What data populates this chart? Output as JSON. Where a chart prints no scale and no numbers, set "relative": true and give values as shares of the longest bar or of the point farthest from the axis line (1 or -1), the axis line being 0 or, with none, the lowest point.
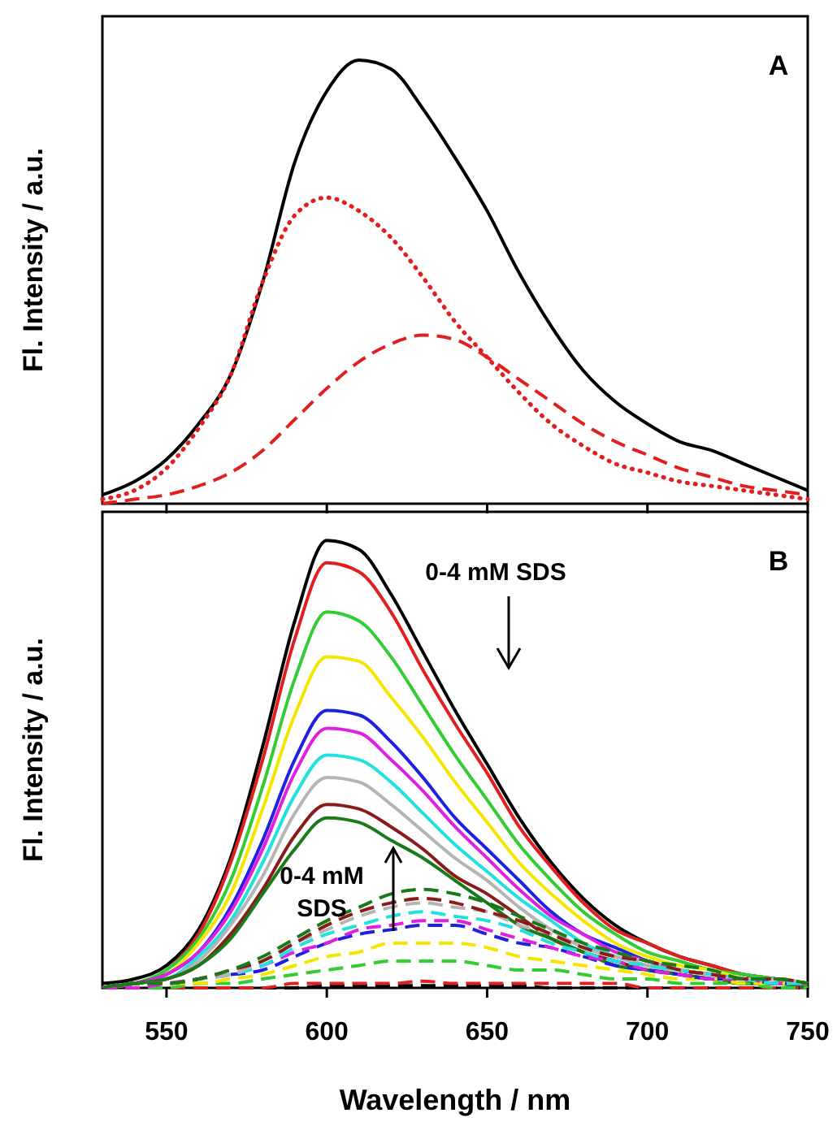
{
  "chart_data": [
    {
      "type": "line",
      "ylabel": "Fl. Intensity / a.u.",
      "relative": true,
      "xlim": [
        530,
        750
      ],
      "xticks": [
        550,
        600,
        650,
        700,
        750
      ],
      "tick_labels": false,
      "annotations": [
        "A"
      ],
      "x": [
        530,
        540,
        550,
        560,
        570,
        580,
        590,
        600,
        610,
        620,
        630,
        640,
        650,
        660,
        670,
        680,
        690,
        700,
        710,
        720,
        730,
        740,
        750
      ],
      "series": [
        {
          "color": "#000000",
          "line_style": "solid",
          "values": [
            0.02,
            0.05,
            0.1,
            0.18,
            0.29,
            0.5,
            0.77,
            0.93,
            1,
            0.98,
            0.89,
            0.78,
            0.66,
            0.52,
            0.4,
            0.3,
            0.23,
            0.18,
            0.14,
            0.12,
            0.09,
            0.06,
            0.03
          ]
        },
        {
          "color": "#e02020",
          "line_style": "dotted",
          "values": [
            0.01,
            0.03,
            0.08,
            0.17,
            0.29,
            0.5,
            0.65,
            0.69,
            0.66,
            0.6,
            0.51,
            0.41,
            0.33,
            0.25,
            0.18,
            0.13,
            0.09,
            0.07,
            0.05,
            0.04,
            0.03,
            0.02,
            0.01
          ]
        },
        {
          "color": "#e02020",
          "line_style": "dashed",
          "values": [
            0,
            0.01,
            0.02,
            0.04,
            0.07,
            0.12,
            0.19,
            0.26,
            0.32,
            0.36,
            0.38,
            0.37,
            0.33,
            0.28,
            0.23,
            0.18,
            0.14,
            0.11,
            0.08,
            0.06,
            0.04,
            0.03,
            0.02
          ]
        }
      ]
    },
    {
      "type": "line",
      "ylabel": "Fl. Intensity / a.u.",
      "xlabel": "Wavelength / nm",
      "relative": true,
      "xlim": [
        530,
        750
      ],
      "xticks": [
        550,
        600,
        650,
        700,
        750
      ],
      "tick_labels": "x",
      "annotations": [
        "B",
        "0-4 mM SDS",
        "0-4 mM SDS"
      ],
      "x": [
        530,
        540,
        550,
        560,
        570,
        580,
        590,
        600,
        610,
        620,
        630,
        640,
        650,
        660,
        670,
        680,
        690,
        700,
        710,
        720,
        730,
        740,
        750
      ],
      "series": [
        {
          "color": "#000000",
          "line_style": "solid",
          "values": [
            0.01,
            0.02,
            0.05,
            0.13,
            0.29,
            0.54,
            0.82,
            1,
            0.98,
            0.88,
            0.75,
            0.62,
            0.5,
            0.38,
            0.28,
            0.2,
            0.14,
            0.1,
            0.07,
            0.05,
            0.03,
            0.02,
            0.01
          ]
        },
        {
          "color": "#e02020",
          "line_style": "solid",
          "values": [
            0,
            0.01,
            0.04,
            0.12,
            0.28,
            0.51,
            0.78,
            0.95,
            0.93,
            0.84,
            0.71,
            0.59,
            0.48,
            0.36,
            0.27,
            0.19,
            0.13,
            0.1,
            0.07,
            0.05,
            0.03,
            0.02,
            0.01
          ]
        },
        {
          "color": "#33cc33",
          "line_style": "solid",
          "values": [
            0,
            0.01,
            0.04,
            0.11,
            0.24,
            0.45,
            0.69,
            0.84,
            0.82,
            0.74,
            0.63,
            0.52,
            0.42,
            0.32,
            0.24,
            0.17,
            0.12,
            0.08,
            0.06,
            0.04,
            0.03,
            0.02,
            0.01
          ]
        },
        {
          "color": "#f5e600",
          "line_style": "solid",
          "values": [
            0,
            0.01,
            0.03,
            0.1,
            0.21,
            0.4,
            0.61,
            0.74,
            0.73,
            0.65,
            0.56,
            0.46,
            0.37,
            0.28,
            0.21,
            0.15,
            0.1,
            0.07,
            0.05,
            0.04,
            0.02,
            0.01,
            0.01
          ]
        },
        {
          "color": "#2020e0",
          "line_style": "solid",
          "values": [
            0,
            0.01,
            0.03,
            0.08,
            0.18,
            0.33,
            0.51,
            0.62,
            0.61,
            0.55,
            0.47,
            0.38,
            0.31,
            0.24,
            0.17,
            0.12,
            0.09,
            0.06,
            0.04,
            0.03,
            0.02,
            0.01,
            0.01
          ]
        },
        {
          "color": "#e020e0",
          "line_style": "solid",
          "values": [
            0,
            0.01,
            0.03,
            0.08,
            0.17,
            0.31,
            0.48,
            0.58,
            0.57,
            0.51,
            0.44,
            0.36,
            0.29,
            0.22,
            0.16,
            0.12,
            0.08,
            0.06,
            0.04,
            0.03,
            0.02,
            0.01,
            0.01
          ]
        },
        {
          "color": "#20e0e0",
          "line_style": "solid",
          "values": [
            0,
            0.01,
            0.02,
            0.07,
            0.15,
            0.28,
            0.43,
            0.52,
            0.51,
            0.46,
            0.39,
            0.32,
            0.26,
            0.2,
            0.15,
            0.1,
            0.07,
            0.05,
            0.04,
            0.03,
            0.02,
            0.01,
            0.01
          ]
        },
        {
          "color": "#b4b4b4",
          "line_style": "solid",
          "values": [
            0,
            0.01,
            0.02,
            0.06,
            0.14,
            0.25,
            0.39,
            0.47,
            0.46,
            0.41,
            0.35,
            0.29,
            0.24,
            0.18,
            0.13,
            0.09,
            0.07,
            0.05,
            0.03,
            0.02,
            0.01,
            0.01,
            0
          ]
        },
        {
          "color": "#8b1a1a",
          "line_style": "solid",
          "values": [
            0,
            0.01,
            0.02,
            0.05,
            0.12,
            0.22,
            0.34,
            0.41,
            0.4,
            0.36,
            0.31,
            0.25,
            0.21,
            0.16,
            0.11,
            0.08,
            0.06,
            0.04,
            0.03,
            0.02,
            0.01,
            0.01,
            0
          ]
        },
        {
          "color": "#1a7a1a",
          "line_style": "solid",
          "values": [
            0,
            0.01,
            0.02,
            0.05,
            0.11,
            0.21,
            0.31,
            0.38,
            0.37,
            0.33,
            0.29,
            0.24,
            0.19,
            0.14,
            0.11,
            0.08,
            0.05,
            0.04,
            0.03,
            0.02,
            0.01,
            0.01,
            0
          ]
        },
        {
          "color": "#000000",
          "line_style": "dashed",
          "values": [
            0,
            0,
            0,
            0,
            0,
            0,
            0,
            0.005,
            0.005,
            0.005,
            0.005,
            0.005,
            0.005,
            0.005,
            0,
            0,
            0,
            0,
            0,
            0,
            0,
            0,
            0
          ]
        },
        {
          "color": "#e02020",
          "line_style": "dashed",
          "values": [
            0,
            0,
            0,
            0,
            0,
            0,
            0.01,
            0.01,
            0.01,
            0.01,
            0.015,
            0.01,
            0.01,
            0.01,
            0.01,
            0.01,
            0.01,
            0,
            0,
            0,
            0,
            0,
            0
          ]
        },
        {
          "color": "#33cc33",
          "line_style": "dashed",
          "values": [
            0,
            0,
            0,
            0.01,
            0.01,
            0.02,
            0.03,
            0.04,
            0.05,
            0.06,
            0.06,
            0.06,
            0.05,
            0.04,
            0.04,
            0.03,
            0.02,
            0.02,
            0.01,
            0.01,
            0.01,
            0,
            0
          ]
        },
        {
          "color": "#f5e600",
          "line_style": "dashed",
          "values": [
            0,
            0,
            0.01,
            0.01,
            0.02,
            0.03,
            0.05,
            0.07,
            0.08,
            0.1,
            0.1,
            0.1,
            0.09,
            0.07,
            0.06,
            0.05,
            0.04,
            0.03,
            0.02,
            0.02,
            0.01,
            0.01,
            0.01
          ]
        },
        {
          "color": "#2020e0",
          "line_style": "dashed",
          "values": [
            null,
            null,
            null,
            null,
            0.03,
            0.04,
            0.07,
            0.1,
            0.12,
            0.13,
            0.14,
            0.14,
            0.12,
            0.1,
            0.09,
            0.07,
            0.05,
            0.04,
            0.03,
            0.02,
            0.02,
            0.01,
            0.01
          ]
        },
        {
          "color": "#e020e0",
          "line_style": "dashed",
          "values": [
            0,
            0,
            0.01,
            0.02,
            0.03,
            0.05,
            0.08,
            0.1,
            0.13,
            0.14,
            0.15,
            0.15,
            0.13,
            0.11,
            0.09,
            0.07,
            0.06,
            0.04,
            0.03,
            0.02,
            0.02,
            0.01,
            0.01
          ]
        },
        {
          "color": "#20e0e0",
          "line_style": "dashed",
          "values": [
            0,
            0.01,
            0.01,
            0.02,
            0.03,
            0.05,
            0.09,
            0.12,
            0.14,
            0.16,
            0.17,
            0.16,
            0.15,
            0.13,
            0.1,
            0.08,
            0.06,
            0.05,
            0.04,
            0.03,
            0.02,
            0.01,
            0.01
          ]
        },
        {
          "color": "#b4b4b4",
          "line_style": "dashed",
          "values": [
            0,
            0.01,
            0.01,
            0.02,
            0.03,
            0.06,
            0.1,
            0.13,
            0.16,
            0.18,
            0.19,
            0.18,
            0.17,
            0.14,
            0.12,
            0.09,
            0.07,
            0.06,
            0.04,
            0.03,
            0.02,
            0.02,
            0.01
          ]
        },
        {
          "color": "#8b1a1a",
          "line_style": "dashed",
          "values": [
            0,
            0.01,
            0.01,
            0.02,
            0.04,
            0.06,
            0.1,
            0.14,
            0.17,
            0.19,
            0.2,
            0.19,
            0.17,
            0.15,
            0.12,
            0.09,
            0.07,
            0.06,
            0.04,
            0.03,
            0.02,
            0.02,
            0.01
          ]
        },
        {
          "color": "#1a7a1a",
          "line_style": "dashed",
          "values": [
            0,
            0.01,
            0.01,
            0.02,
            0.04,
            0.07,
            0.11,
            0.15,
            0.18,
            0.21,
            0.22,
            0.21,
            0.19,
            0.16,
            0.13,
            0.1,
            0.08,
            0.06,
            0.05,
            0.04,
            0.02,
            0.02,
            0.01
          ]
        }
      ]
    }
  ]
}
